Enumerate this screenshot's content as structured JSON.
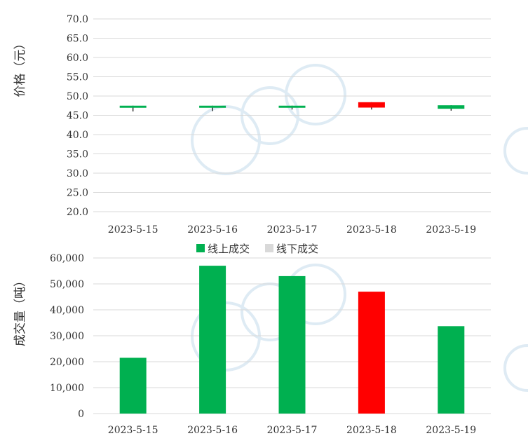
{
  "chart_data": [
    {
      "type": "candlestick",
      "ylabel": "价格（元）",
      "ylim": [
        20,
        70
      ],
      "y_ticks": [
        "70.0",
        "65.0",
        "60.0",
        "55.0",
        "50.0",
        "45.0",
        "40.0",
        "35.0",
        "30.0",
        "25.0",
        "20.0"
      ],
      "categories": [
        "2023-5-15",
        "2023-5-16",
        "2023-5-17",
        "2023-5-18",
        "2023-5-19"
      ],
      "series": [
        {
          "open": 47.5,
          "close": 47.1,
          "high": 47.5,
          "low": 46.0,
          "color": "#00b050"
        },
        {
          "open": 47.5,
          "close": 47.1,
          "high": 47.5,
          "low": 46.1,
          "color": "#00b050"
        },
        {
          "open": 47.5,
          "close": 47.1,
          "high": 47.5,
          "low": 46.5,
          "color": "#00b050"
        },
        {
          "open": 47.0,
          "close": 48.4,
          "high": 48.4,
          "low": 46.5,
          "color": "#ff0000"
        },
        {
          "open": 47.6,
          "close": 46.7,
          "high": 47.6,
          "low": 46.2,
          "color": "#00b050"
        }
      ],
      "grid": true
    },
    {
      "type": "bar",
      "ylabel": "成交量（吨）",
      "ylim": [
        0,
        60000
      ],
      "y_ticks": [
        "60,000",
        "50,000",
        "40,000",
        "30,000",
        "20,000",
        "10,000",
        "0"
      ],
      "categories": [
        "2023-5-15",
        "2023-5-16",
        "2023-5-17",
        "2023-5-18",
        "2023-5-19"
      ],
      "legend_position": "top-center",
      "series": [
        {
          "name": "线上成交",
          "color": "#00b050",
          "values": [
            21500,
            57000,
            53000,
            47000,
            33700
          ],
          "bar_colors": [
            "#00b050",
            "#00b050",
            "#00b050",
            "#ff0000",
            "#00b050"
          ]
        },
        {
          "name": "线下成交",
          "color": "#d9d9d9",
          "values": [
            0,
            0,
            0,
            0,
            0
          ]
        }
      ],
      "grid": true
    }
  ]
}
